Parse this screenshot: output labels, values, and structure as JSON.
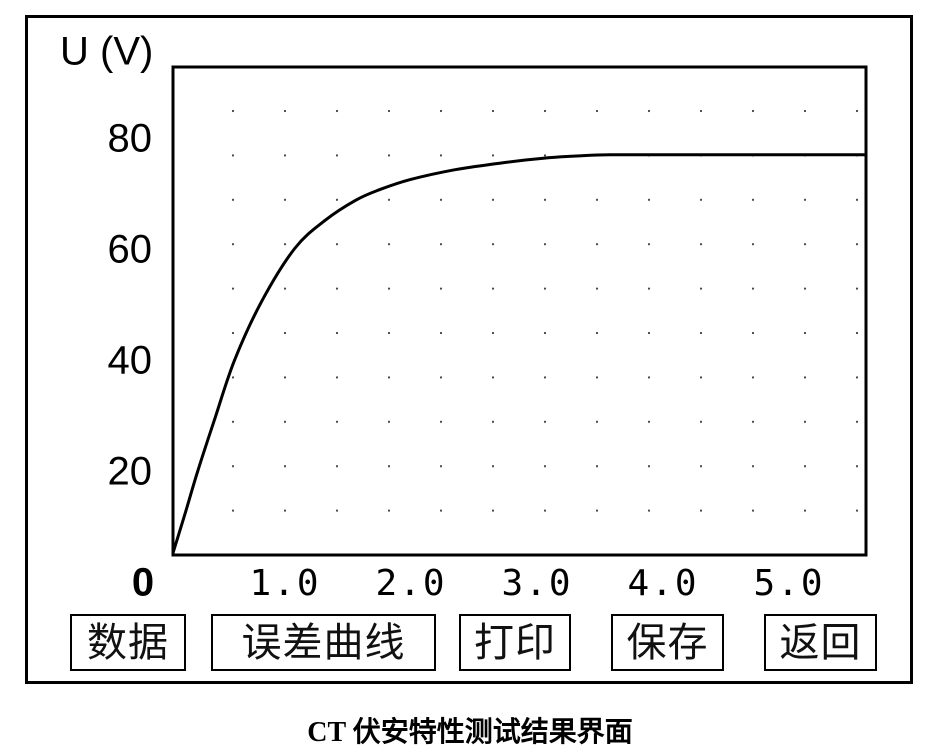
{
  "chart_data": {
    "type": "line",
    "ylabel": "U (V)",
    "origin_label": "0",
    "xlim": [
      0,
      5.6
    ],
    "ylim": [
      0,
      92
    ],
    "grid": true,
    "x_ticks": [
      {
        "value": 1,
        "label": "1.0"
      },
      {
        "value": 2,
        "label": "2.0"
      },
      {
        "value": 3,
        "label": "3.0"
      },
      {
        "value": 4,
        "label": "4.0"
      },
      {
        "value": 5,
        "label": "5.0"
      }
    ],
    "y_ticks": [
      {
        "value": 20,
        "label": "20"
      },
      {
        "value": 40,
        "label": "40"
      },
      {
        "value": 60,
        "label": "60"
      },
      {
        "value": 80,
        "label": "80"
      }
    ],
    "series": [
      {
        "x": [
          0.11,
          0.21,
          0.31,
          0.44,
          0.6,
          0.82,
          1.08,
          1.32,
          1.56,
          1.75,
          1.99,
          2.35,
          2.71,
          3.06,
          3.34,
          3.58,
          4.0,
          4.5,
          5.0,
          5.6
        ],
        "y": [
          5,
          12.4,
          20,
          29,
          39.8,
          50.6,
          60,
          65,
          68.6,
          70.5,
          72.3,
          74.1,
          75.3,
          76.2,
          76.6,
          76.8,
          76.8,
          76.8,
          76.8,
          76.8
        ]
      }
    ]
  },
  "buttons": [
    {
      "label": "数据"
    },
    {
      "label": "误差曲线"
    },
    {
      "label": "打印"
    },
    {
      "label": "保存"
    },
    {
      "label": "返回"
    }
  ],
  "caption": "CT 伏安特性测试结果界面"
}
